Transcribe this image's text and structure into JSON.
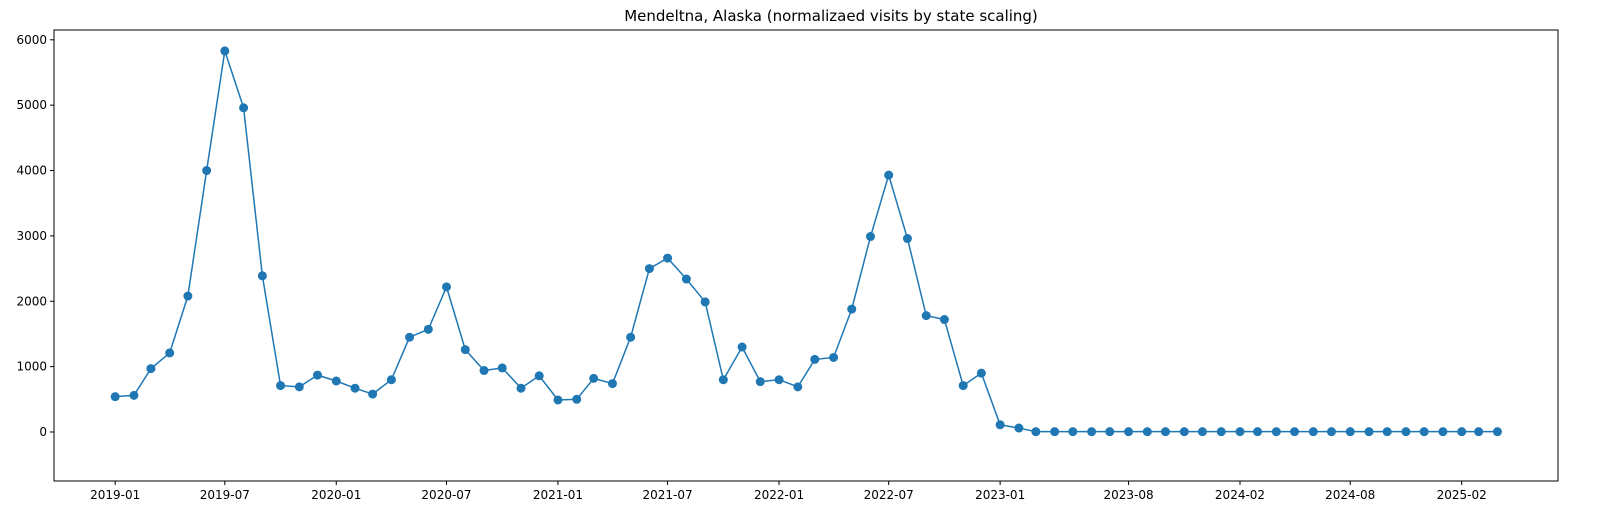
{
  "chart_data": {
    "type": "line",
    "title": "Mendeltna, Alaska (normalizaed visits by state scaling)",
    "xlabel": "",
    "ylabel": "",
    "ylim": [
      -750,
      6150
    ],
    "xlim": [
      "2018-09-22",
      "2025-07-10"
    ],
    "grid": false,
    "marker": "circle",
    "line_color": "#1f77b4",
    "x_ticks": [
      "2019-01",
      "2019-07",
      "2020-01",
      "2020-07",
      "2021-01",
      "2021-07",
      "2022-01",
      "2022-07",
      "2023-01",
      "2023-08",
      "2024-02",
      "2024-08",
      "2025-02"
    ],
    "y_ticks": [
      0,
      1000,
      2000,
      3000,
      4000,
      5000,
      6000
    ],
    "x": [
      "2019-01",
      "2019-02",
      "2019-03",
      "2019-04",
      "2019-05",
      "2019-06",
      "2019-07",
      "2019-08",
      "2019-09",
      "2019-10",
      "2019-11",
      "2019-12",
      "2020-01",
      "2020-02",
      "2020-03",
      "2020-04",
      "2020-05",
      "2020-06",
      "2020-07",
      "2020-08",
      "2020-09",
      "2020-10",
      "2020-11",
      "2020-12",
      "2021-01",
      "2021-02",
      "2021-03",
      "2021-04",
      "2021-05",
      "2021-06",
      "2021-07",
      "2021-08",
      "2021-09",
      "2021-10",
      "2021-11",
      "2021-12",
      "2022-01",
      "2022-02",
      "2022-03",
      "2022-04",
      "2022-05",
      "2022-06",
      "2022-07",
      "2022-08",
      "2022-09",
      "2022-10",
      "2022-11",
      "2022-12",
      "2023-01",
      "2023-02",
      "2023-03",
      "2023-04",
      "2023-05",
      "2023-06",
      "2023-07",
      "2023-08",
      "2023-09",
      "2023-10",
      "2023-11",
      "2023-12",
      "2024-01",
      "2024-02",
      "2024-03",
      "2024-04",
      "2024-05",
      "2024-06",
      "2024-07",
      "2024-08",
      "2024-09",
      "2024-10",
      "2024-11",
      "2024-12",
      "2025-01",
      "2025-02",
      "2025-03",
      "2025-04"
    ],
    "series": [
      {
        "values": [
          540,
          560,
          970,
          1210,
          2080,
          4000,
          5830,
          4960,
          2390,
          710,
          690,
          870,
          780,
          670,
          580,
          800,
          1450,
          1570,
          2220,
          1260,
          940,
          980,
          670,
          860,
          490,
          500,
          820,
          740,
          1450,
          2500,
          2660,
          2340,
          1990,
          800,
          1300,
          770,
          800,
          690,
          1110,
          1140,
          1880,
          2990,
          3930,
          2960,
          1780,
          1720,
          710,
          900,
          110,
          60,
          5,
          5,
          5,
          5,
          5,
          5,
          5,
          5,
          5,
          5,
          5,
          5,
          5,
          5,
          5,
          5,
          5,
          5,
          5,
          5,
          5,
          5,
          5,
          5,
          5,
          5
        ]
      }
    ]
  }
}
